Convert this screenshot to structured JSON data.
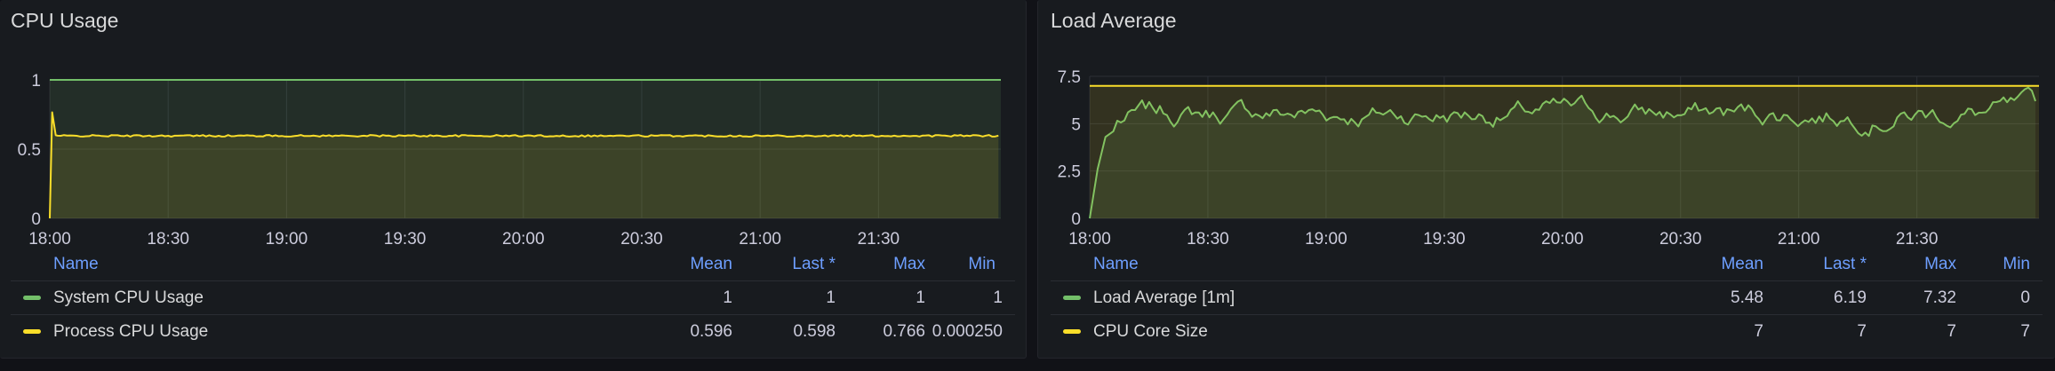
{
  "colors": {
    "green": "#73bf69",
    "yellow": "#fade2a",
    "axis_text": "#ccccdc",
    "grid": "#2c2f36"
  },
  "legend_headers": {
    "name": "Name",
    "mean": "Mean",
    "last": "Last *",
    "max": "Max",
    "min": "Min"
  },
  "chart_data": [
    {
      "type": "line",
      "title": "CPU Usage",
      "x_ticks": [
        "18:00",
        "18:30",
        "19:00",
        "19:30",
        "20:00",
        "20:30",
        "21:00",
        "21:30"
      ],
      "x_range": [
        "18:00",
        "22:01"
      ],
      "ylim": [
        0,
        1
      ],
      "y_ticks": [
        "0",
        "0.5",
        "1"
      ],
      "grid": true,
      "fill": true,
      "series": [
        {
          "name": "System CPU Usage",
          "color": "#73bf69",
          "constant": 1,
          "stats": {
            "mean": "1",
            "last": "1",
            "max": "1",
            "min": "1"
          }
        },
        {
          "name": "Process CPU Usage",
          "color": "#fade2a",
          "start": 0.00025,
          "peak": 0.766,
          "level": 0.596,
          "stats": {
            "mean": "0.596",
            "last": "0.598",
            "max": "0.766",
            "min": "0.000250"
          }
        }
      ]
    },
    {
      "type": "line",
      "title": "Load Average",
      "x_ticks": [
        "18:00",
        "18:30",
        "19:00",
        "19:30",
        "20:00",
        "20:30",
        "21:00",
        "21:30"
      ],
      "x_range": [
        "18:00",
        "22:01"
      ],
      "ylim": [
        0,
        7.5
      ],
      "y_ticks": [
        "0",
        "2.5",
        "5",
        "7.5"
      ],
      "grid": true,
      "fill": true,
      "series": [
        {
          "name": "Load Average [1m]",
          "color": "#73bf69",
          "level": 5.48,
          "max": 7.32,
          "start": 0,
          "stats": {
            "mean": "5.48",
            "last": "6.19",
            "max": "7.32",
            "min": "0"
          }
        },
        {
          "name": "CPU Core Size",
          "color": "#fade2a",
          "constant": 7,
          "stats": {
            "mean": "7",
            "last": "7",
            "max": "7",
            "min": "7"
          }
        }
      ]
    }
  ]
}
